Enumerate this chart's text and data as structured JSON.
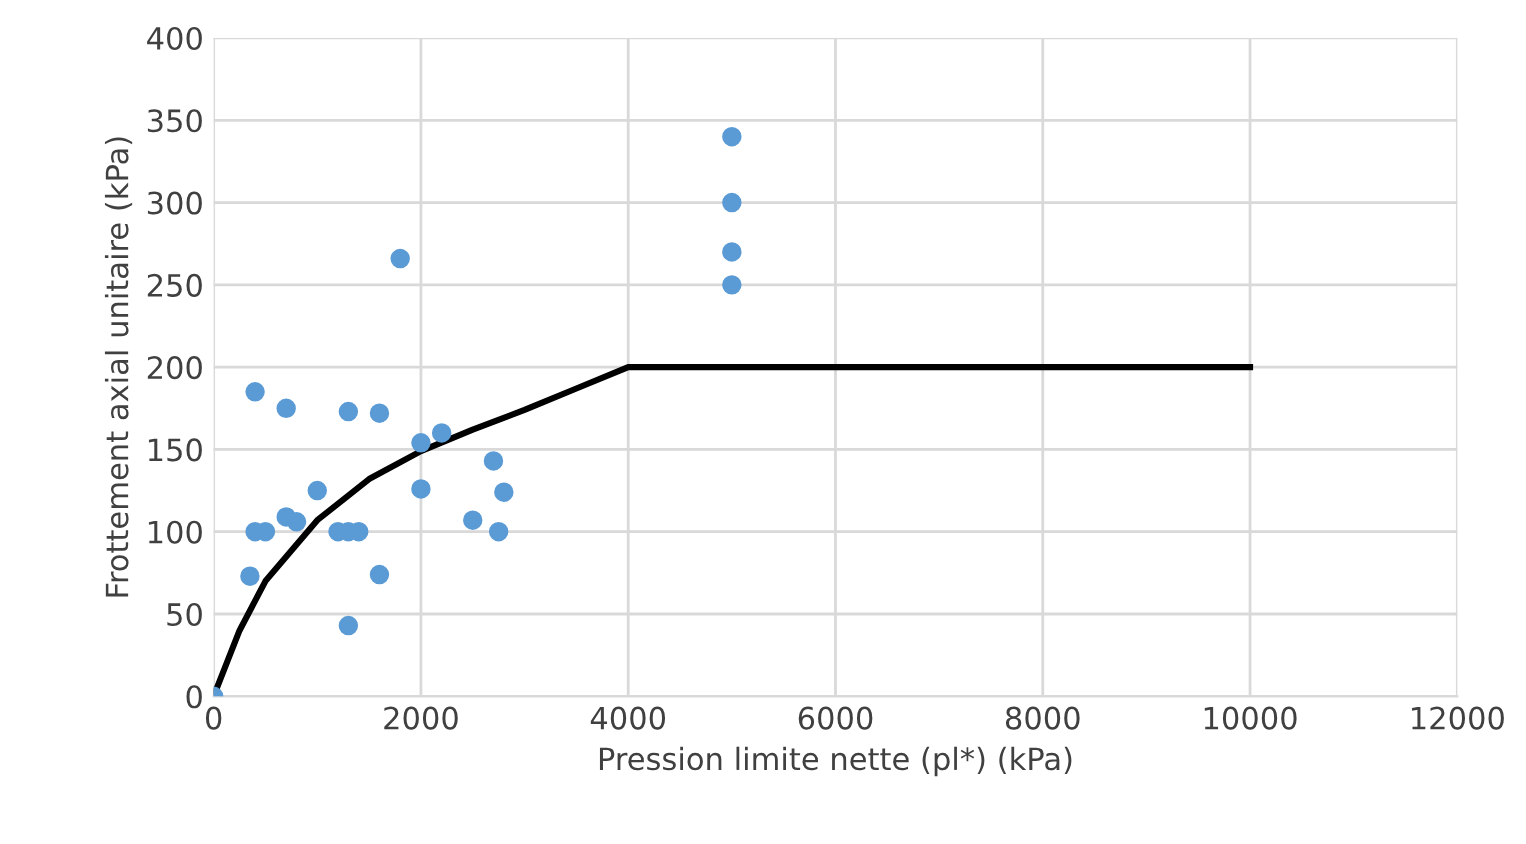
{
  "chart_data": {
    "type": "scatter",
    "xlabel": "Pression limite nette (pl*) (kPa)",
    "ylabel": "Frottement axial unitaire (kPa)",
    "xlim": [
      0,
      12000
    ],
    "xticks": [
      0,
      2000,
      4000,
      6000,
      8000,
      10000,
      12000
    ],
    "ylim": [
      0,
      400
    ],
    "yticks": [
      0,
      50,
      100,
      150,
      200,
      250,
      300,
      350,
      400
    ],
    "grid": true,
    "series": [
      {
        "marker": "circle",
        "color": "#5b9bd5",
        "x": [
          0,
          400,
          700,
          1300,
          1600,
          2000,
          2200,
          2700,
          2800,
          2500,
          2750,
          1000,
          700,
          800,
          400,
          500,
          1200,
          1300,
          1400,
          350,
          1600,
          1300,
          1800,
          2000,
          5000,
          5000,
          5000,
          5000
        ],
        "values": [
          0,
          185,
          175,
          173,
          172,
          154,
          160,
          143,
          124,
          107,
          100,
          125,
          109,
          106,
          100,
          100,
          100,
          100,
          100,
          73,
          74,
          43,
          266,
          126,
          340,
          300,
          270,
          250
        ]
      },
      {
        "type": "line",
        "color": "#000000",
        "marker": "none",
        "x": [
          0,
          250,
          500,
          1000,
          1500,
          2000,
          2500,
          3000,
          3500,
          4000,
          10000
        ],
        "values": [
          0,
          40,
          70,
          107,
          132,
          149,
          162,
          174,
          187,
          200,
          200
        ]
      }
    ]
  }
}
